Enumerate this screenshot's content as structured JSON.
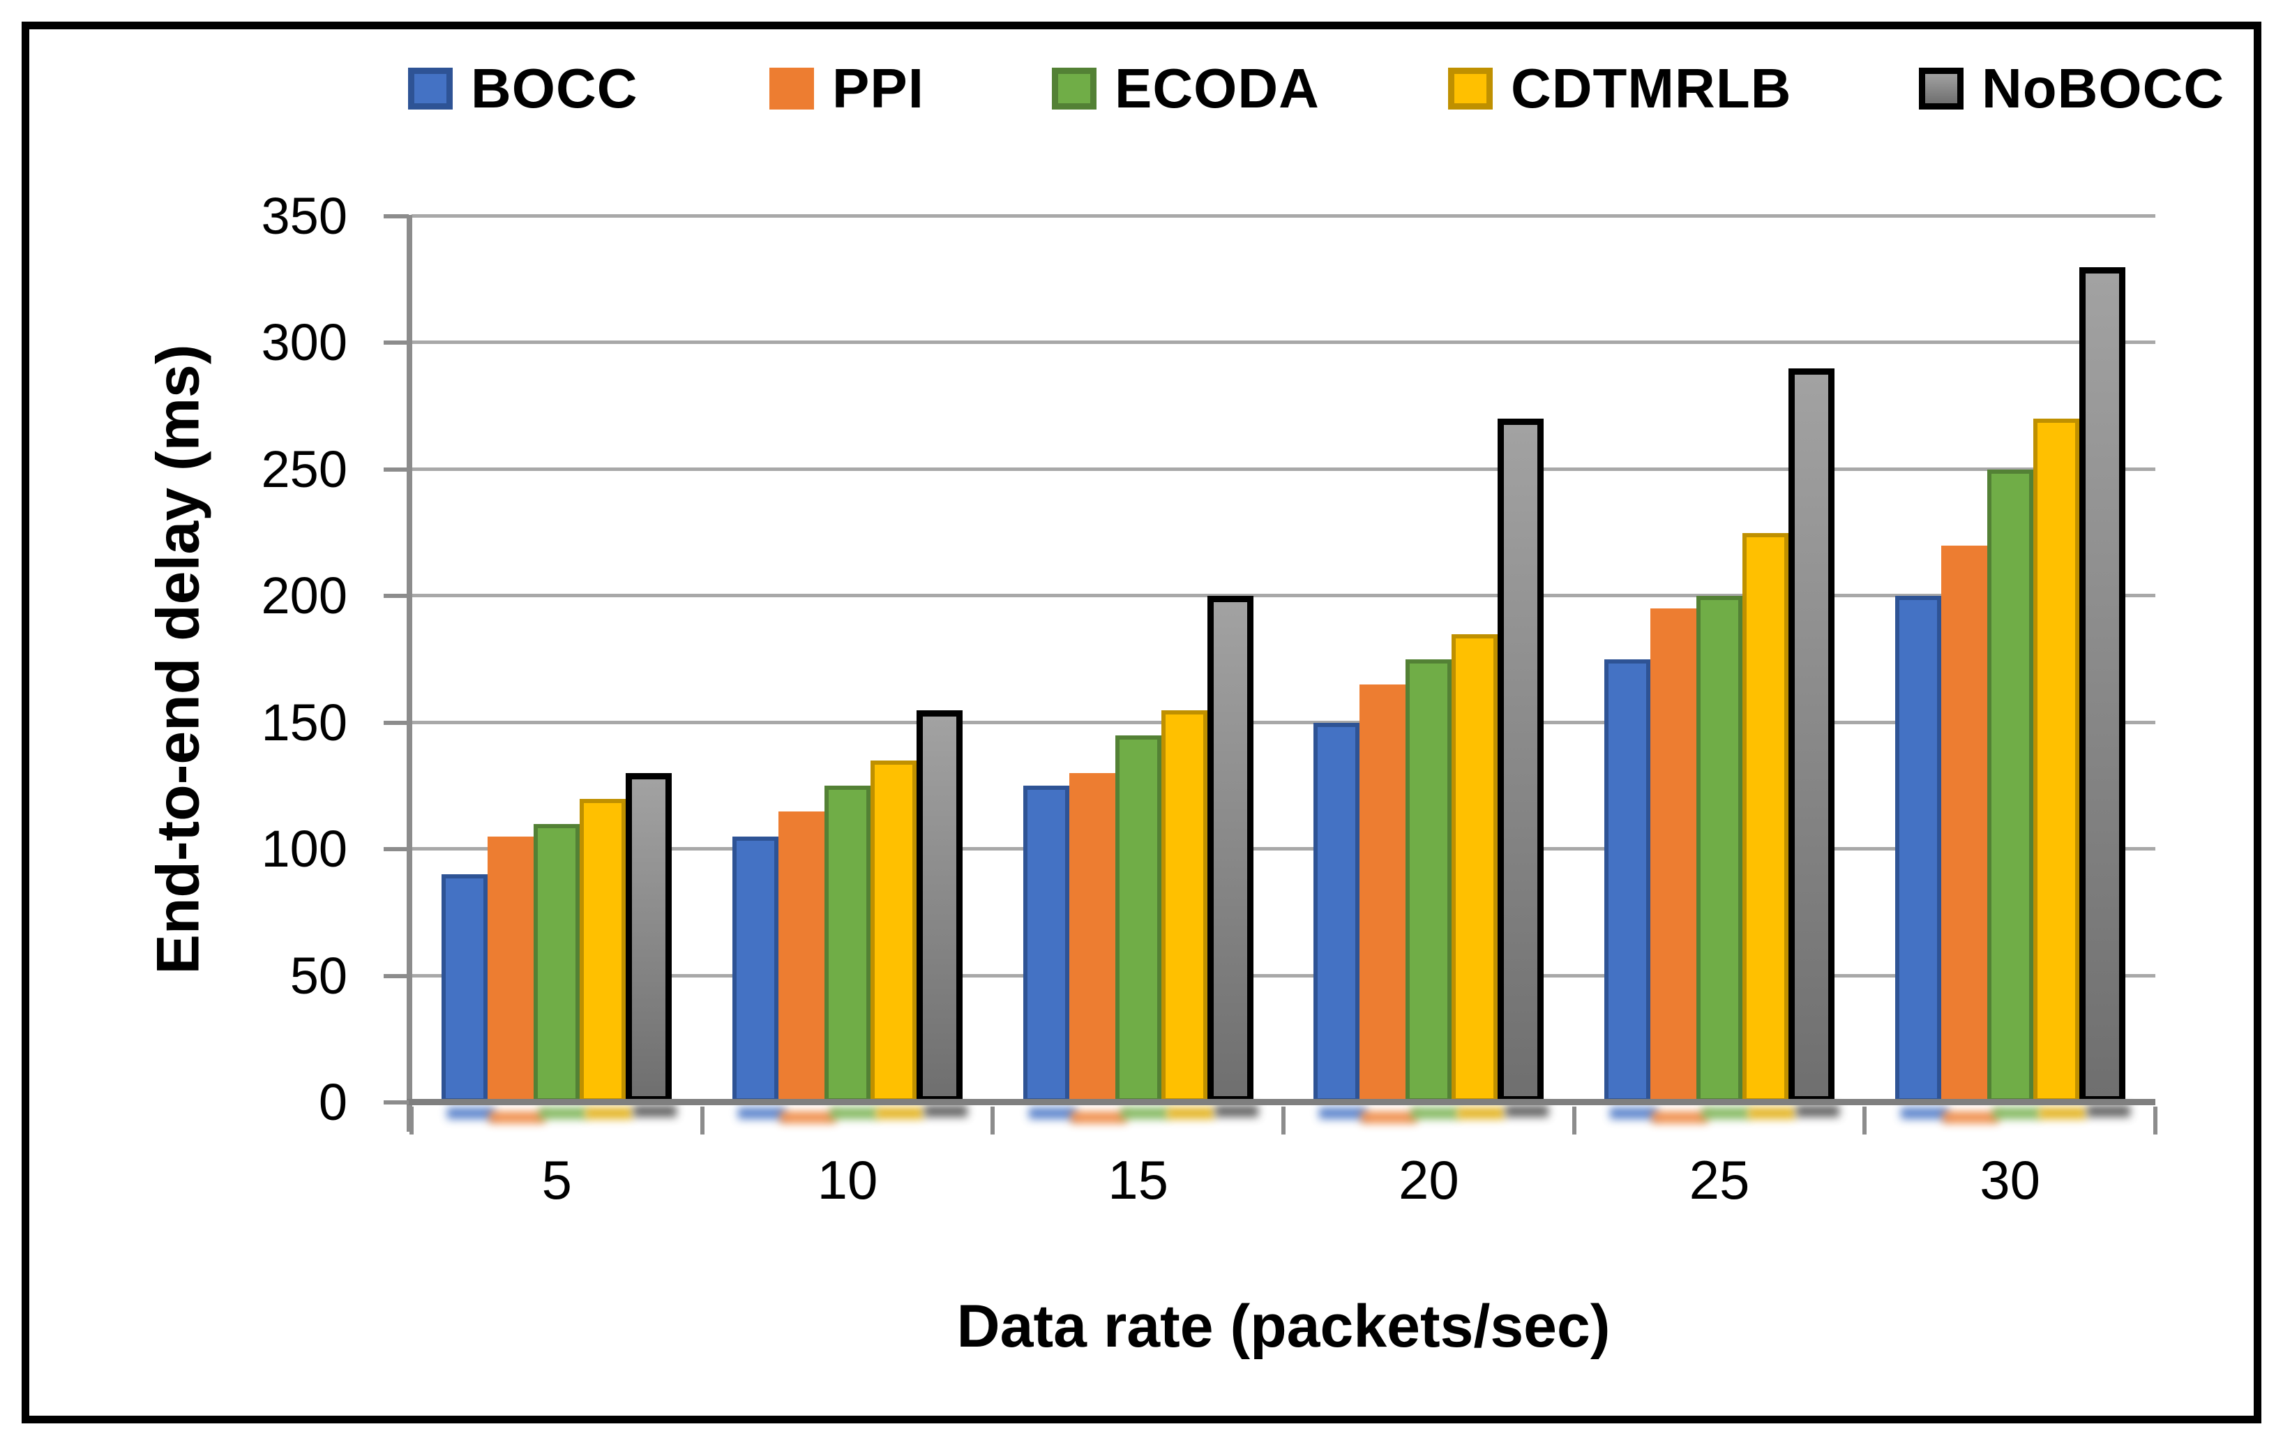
{
  "figure": {
    "y_axis_title": "End-to-end delay (ms)",
    "x_axis_title": "Data rate (packets/sec)"
  },
  "chart_data": {
    "type": "bar",
    "title": "",
    "xlabel": "Data rate (packets/sec)",
    "ylabel": "End-to-end delay (ms)",
    "categories": [
      "5",
      "10",
      "15",
      "20",
      "25",
      "30"
    ],
    "series": [
      {
        "name": "BOCC",
        "values": [
          90,
          105,
          125,
          150,
          175,
          200
        ],
        "fill": "#4472C4",
        "edge": "#2E5395",
        "shadow": "#4472C4"
      },
      {
        "name": "PPI",
        "values": [
          105,
          115,
          130,
          165,
          195,
          220
        ],
        "fill": "#ED7D31",
        "edge": "#ED7D31",
        "shadow": "#ED7D31"
      },
      {
        "name": "ECODA",
        "values": [
          110,
          125,
          145,
          175,
          200,
          250
        ],
        "fill": "#70AD47",
        "edge": "#538135",
        "shadow": "#70AD47"
      },
      {
        "name": "CDTMRLB",
        "values": [
          120,
          135,
          155,
          185,
          225,
          270
        ],
        "fill": "#FFC000",
        "edge": "#BF9000",
        "shadow": "#DFA800"
      },
      {
        "name": "NoBOCC",
        "values": [
          130,
          155,
          200,
          270,
          290,
          330
        ],
        "fill": "linear-gradient(180deg,#A2A2A2 0%,#6F6F6F 100%)",
        "edge": "#000000",
        "shadow": "#4A4A4A"
      }
    ],
    "ylim": [
      0,
      350
    ],
    "y_step": 50,
    "y_tick_labels": [
      "0",
      "50",
      "100",
      "150",
      "200",
      "250",
      "300",
      "350"
    ],
    "grid": true,
    "legend_position": "top",
    "colors": {
      "gridline": "#A8A8A8",
      "axis_line": "#8C8C8C",
      "zero_axis": "#7F7F7F",
      "frame_border": "#000000",
      "text": "#000000"
    }
  }
}
